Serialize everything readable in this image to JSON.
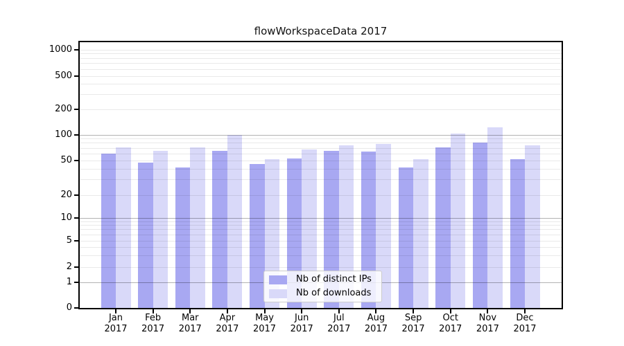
{
  "title": "flowWorkspaceData 2017",
  "legend": {
    "items": [
      {
        "label": "Nb of distinct IPs",
        "color": "#a8a8f2"
      },
      {
        "label": "Nb of downloads",
        "color": "#d9d9f9"
      }
    ]
  },
  "chart_data": {
    "type": "bar",
    "title": "flowWorkspaceData 2017",
    "categories": [
      "Jan 2017",
      "Feb 2017",
      "Mar 2017",
      "Apr 2017",
      "May 2017",
      "Jun 2017",
      "Jul 2017",
      "Aug 2017",
      "Sep 2017",
      "Oct 2017",
      "Nov 2017",
      "Dec 2017"
    ],
    "series": [
      {
        "name": "Nb of distinct IPs",
        "color": "#a8a8f2",
        "values": [
          60,
          47,
          42,
          65,
          46,
          53,
          65,
          64,
          42,
          72,
          81,
          52
        ]
      },
      {
        "name": "Nb of downloads",
        "color": "#d9d9f9",
        "values": [
          72,
          65,
          72,
          100,
          52,
          67,
          75,
          79,
          52,
          104,
          124,
          75
        ]
      }
    ],
    "xlabel": "",
    "ylabel": "",
    "y_scale": "symlog",
    "y_ticks": [
      0,
      1,
      2,
      5,
      10,
      20,
      50,
      100,
      200,
      500,
      1000
    ],
    "ylim": [
      0,
      1400
    ],
    "grid": true,
    "legend_position": "lower center"
  },
  "colors": {
    "background": "#ffffff",
    "spine": "#000000",
    "major_grid": "#b3b3b3",
    "minor_grid": "#e9e9e9"
  }
}
